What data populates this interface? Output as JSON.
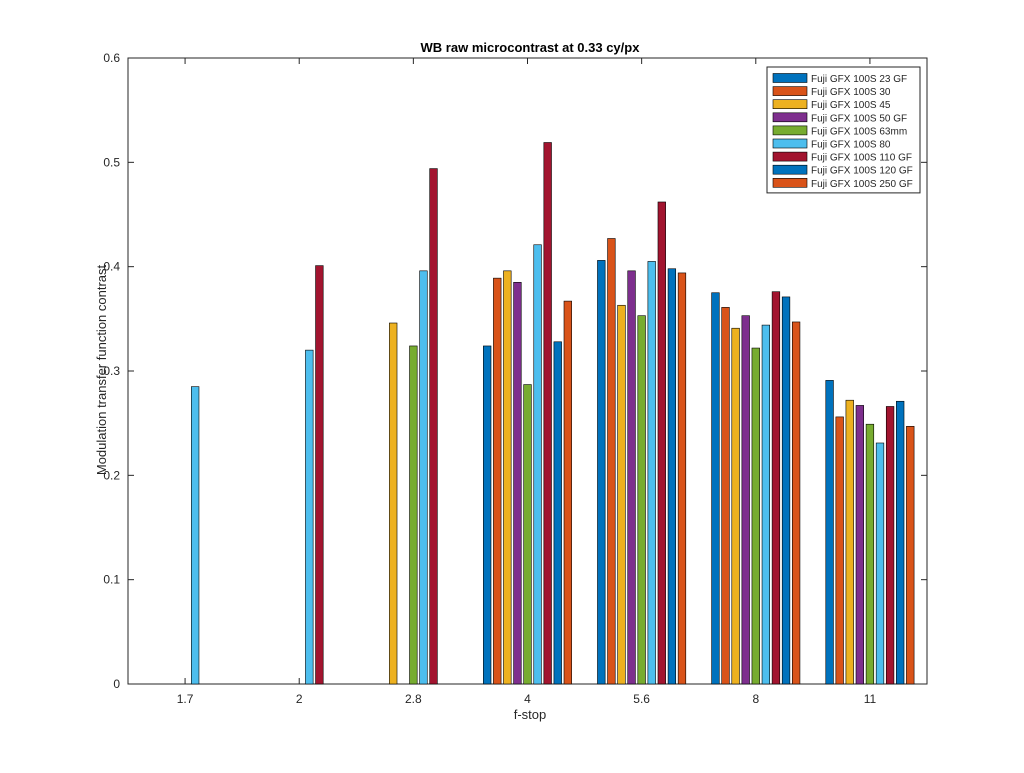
{
  "chart_data": {
    "type": "bar",
    "title": "WB raw  microcontrast at 0.33 cy/px",
    "xlabel": "f-stop",
    "ylabel": "Modulation transfer function contrast",
    "categories": [
      "1.7",
      "2",
      "2.8",
      "4",
      "5.6",
      "8",
      "11"
    ],
    "ylim": [
      0,
      0.6
    ],
    "yticks": [
      "0",
      "0.1",
      "0.2",
      "0.3",
      "0.4",
      "0.5",
      "0.6"
    ],
    "grid": false,
    "legend_position": "top-right",
    "series": [
      {
        "name": "Fuji GFX 100S 23  GF",
        "color": "#0072BD",
        "values": [
          null,
          null,
          null,
          0.324,
          0.406,
          0.375,
          0.291
        ]
      },
      {
        "name": "Fuji GFX 100S 30",
        "color": "#D95319",
        "values": [
          null,
          null,
          null,
          0.389,
          0.427,
          0.361,
          0.256
        ]
      },
      {
        "name": "Fuji GFX 100S 45",
        "color": "#EDB120",
        "values": [
          null,
          null,
          0.346,
          0.396,
          0.363,
          0.341,
          0.272
        ]
      },
      {
        "name": "Fuji GFX 100S 50 GF",
        "color": "#7E2F8E",
        "values": [
          null,
          null,
          null,
          0.385,
          0.396,
          0.353,
          0.267
        ]
      },
      {
        "name": "Fuji GFX 100S 63mm",
        "color": "#77AC30",
        "values": [
          null,
          null,
          0.324,
          0.287,
          0.353,
          0.322,
          0.249
        ]
      },
      {
        "name": "Fuji GFX 100S 80",
        "color": "#4DBEEE",
        "values": [
          0.285,
          0.32,
          0.396,
          0.421,
          0.405,
          0.344,
          0.231
        ]
      },
      {
        "name": "Fuji GFX 100S 110 GF",
        "color": "#A2142F",
        "values": [
          null,
          0.401,
          0.494,
          0.519,
          0.462,
          0.376,
          0.266
        ]
      },
      {
        "name": "Fuji GFX 100S 120 GF",
        "color": "#0072BD",
        "values": [
          null,
          null,
          null,
          0.328,
          0.398,
          0.371,
          0.271
        ]
      },
      {
        "name": "Fuji GFX 100S 250 GF",
        "color": "#D95319",
        "values": [
          null,
          null,
          null,
          0.367,
          0.394,
          0.347,
          0.247
        ]
      }
    ]
  }
}
